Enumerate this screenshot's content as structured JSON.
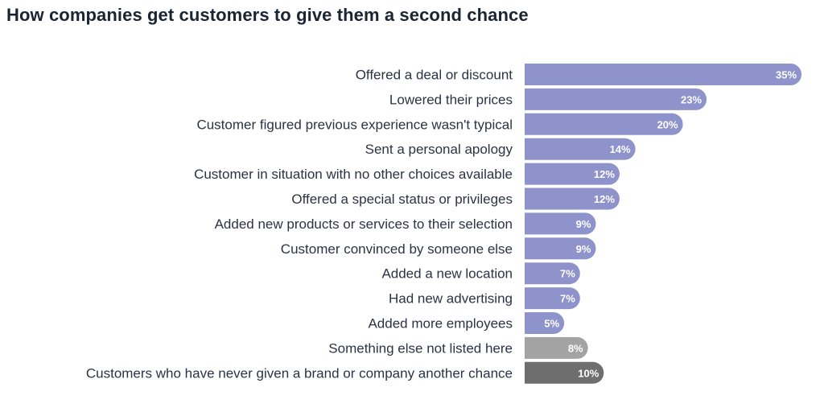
{
  "chart_data": {
    "type": "bar",
    "orientation": "horizontal",
    "title": "How companies get customers to give them a second chance",
    "xlabel": "",
    "ylabel": "",
    "xlim": [
      0,
      35
    ],
    "grid": false,
    "value_suffix": "%",
    "categories": [
      "Offered a deal or discount",
      "Lowered their prices",
      "Customer figured previous experience wasn't typical",
      "Sent a personal apology",
      "Customer in situation with no other choices available",
      "Offered a special status or privileges",
      "Added new products or services to their selection",
      "Customer convinced by someone else",
      "Added a new location",
      "Had new advertising",
      "Added more employees",
      "Something else not listed here",
      "Customers who have never given a brand or company another chance"
    ],
    "values": [
      35,
      23,
      20,
      14,
      12,
      12,
      9,
      9,
      7,
      7,
      5,
      8,
      10
    ],
    "value_labels": [
      "35%",
      "23%",
      "20%",
      "14%",
      "12%",
      "12%",
      "9%",
      "9%",
      "7%",
      "7%",
      "5%",
      "8%",
      "10%"
    ],
    "bar_colors": [
      "#8e93cb",
      "#8e93cb",
      "#8e93cb",
      "#8e93cb",
      "#8e93cb",
      "#8e93cb",
      "#8e93cb",
      "#8e93cb",
      "#8e93cb",
      "#8e93cb",
      "#8e93cb",
      "#a3a3a3",
      "#6e6e6e"
    ]
  }
}
